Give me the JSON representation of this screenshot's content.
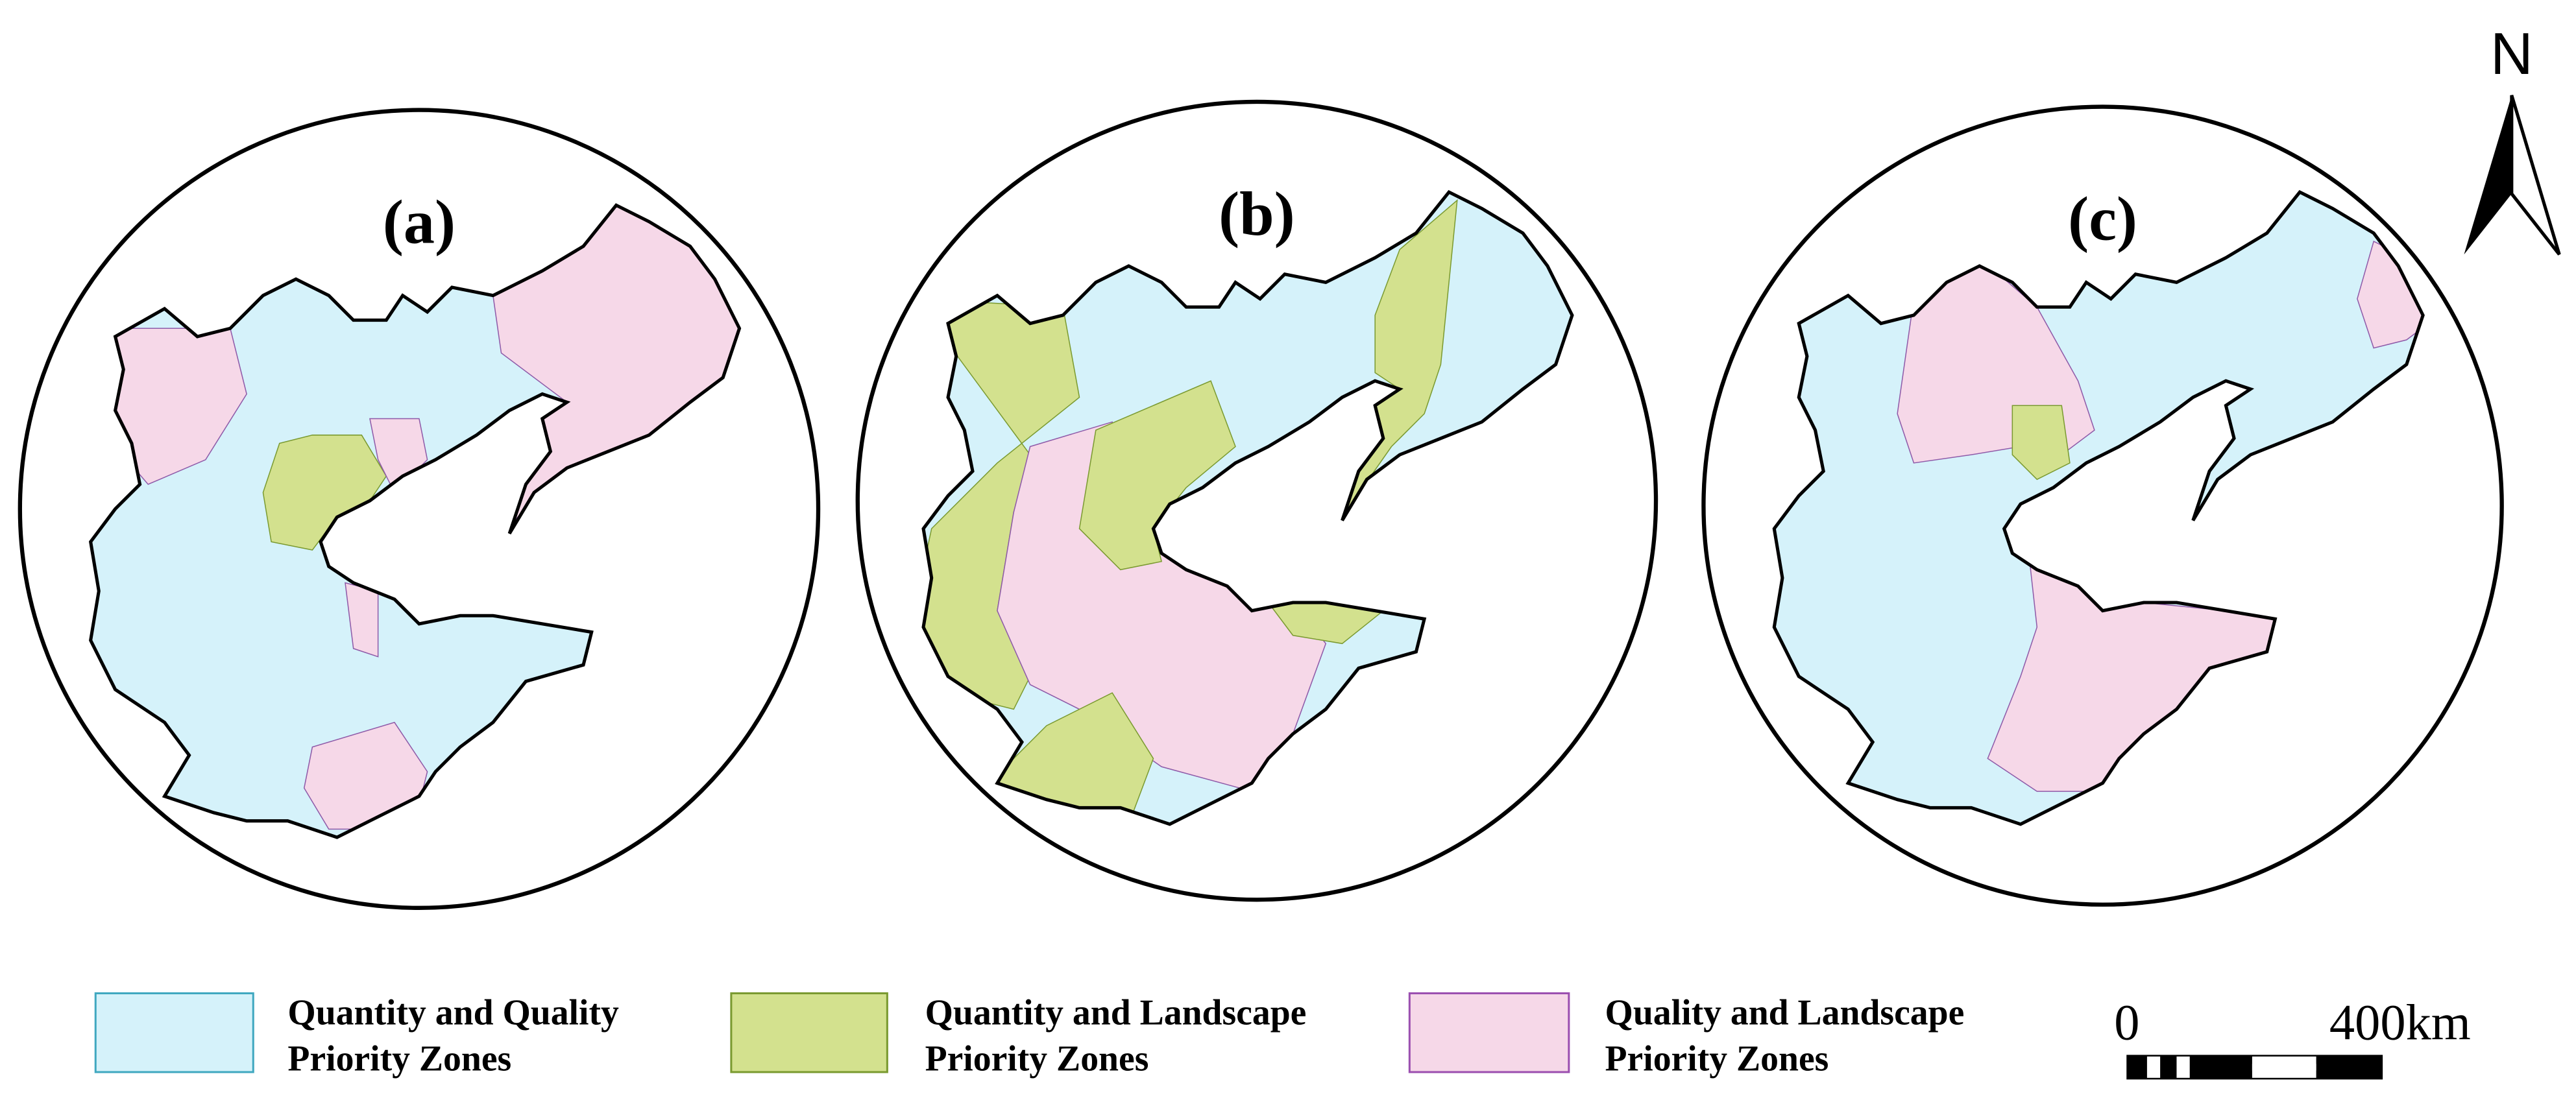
{
  "panels": [
    {
      "label": "(a)"
    },
    {
      "label": "(b)"
    },
    {
      "label": "(c)"
    }
  ],
  "legend": [
    {
      "lines": [
        "Quantity and Quality",
        "Priority Zones"
      ]
    },
    {
      "lines": [
        "Quantity and Landscape",
        "Priority Zones"
      ]
    },
    {
      "lines": [
        "Quality and Landscape",
        "Priority Zones"
      ]
    }
  ],
  "north": "N",
  "scale": {
    "start": "0",
    "end": "400km"
  }
}
